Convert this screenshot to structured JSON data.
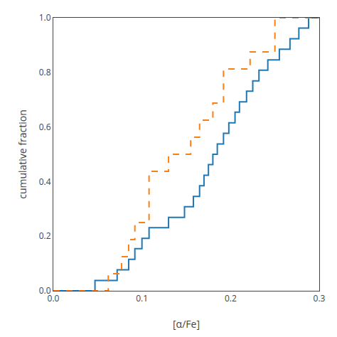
{
  "chart_data": {
    "type": "line",
    "xlabel": "[α/Fe]",
    "ylabel": "cumulative fraction",
    "xlim": [
      0,
      0.3
    ],
    "ylim": [
      0,
      1
    ],
    "xticks": [
      {
        "value": 0,
        "label": "0.0"
      },
      0.1,
      0.2,
      0.3
    ],
    "yticks": [
      {
        "value": 0,
        "label": "0.0"
      },
      0.2,
      0.4,
      0.6,
      0.8,
      {
        "value": 1.0,
        "label": "1.0"
      }
    ],
    "grid": false,
    "series": [
      {
        "line_style": "solid",
        "x": [
          0.0,
          0.047,
          0.047,
          0.072,
          0.072,
          0.085,
          0.085,
          0.092,
          0.092,
          0.1,
          0.1,
          0.108,
          0.108,
          0.13,
          0.13,
          0.148,
          0.148,
          0.158,
          0.158,
          0.165,
          0.165,
          0.17,
          0.17,
          0.175,
          0.175,
          0.18,
          0.18,
          0.185,
          0.185,
          0.192,
          0.192,
          0.198,
          0.198,
          0.205,
          0.205,
          0.21,
          0.21,
          0.218,
          0.218,
          0.225,
          0.225,
          0.232,
          0.232,
          0.242,
          0.242,
          0.255,
          0.255,
          0.267,
          0.267,
          0.277,
          0.277,
          0.288,
          0.288,
          0.3
        ],
        "values": [
          0.0,
          0.0,
          0.038,
          0.038,
          0.077,
          0.077,
          0.115,
          0.115,
          0.154,
          0.154,
          0.192,
          0.192,
          0.231,
          0.231,
          0.269,
          0.269,
          0.308,
          0.308,
          0.346,
          0.346,
          0.385,
          0.385,
          0.423,
          0.423,
          0.462,
          0.462,
          0.5,
          0.5,
          0.538,
          0.538,
          0.577,
          0.577,
          0.615,
          0.615,
          0.654,
          0.654,
          0.692,
          0.692,
          0.731,
          0.731,
          0.769,
          0.769,
          0.808,
          0.808,
          0.846,
          0.846,
          0.885,
          0.885,
          0.923,
          0.923,
          0.962,
          0.962,
          1.0,
          1.0
        ]
      },
      {
        "line_style": "dashed",
        "x": [
          0.0,
          0.062,
          0.062,
          0.077,
          0.077,
          0.085,
          0.085,
          0.092,
          0.092,
          0.108,
          0.108,
          0.13,
          0.13,
          0.155,
          0.155,
          0.165,
          0.165,
          0.18,
          0.18,
          0.192,
          0.192,
          0.222,
          0.222,
          0.25,
          0.25,
          0.3
        ],
        "values": [
          0.0,
          0.0,
          0.0625,
          0.0625,
          0.125,
          0.125,
          0.1875,
          0.1875,
          0.25,
          0.25,
          0.4375,
          0.4375,
          0.5,
          0.5,
          0.5625,
          0.5625,
          0.625,
          0.625,
          0.6875,
          0.6875,
          0.8125,
          0.8125,
          0.875,
          0.875,
          1.0,
          1.0
        ]
      }
    ]
  }
}
